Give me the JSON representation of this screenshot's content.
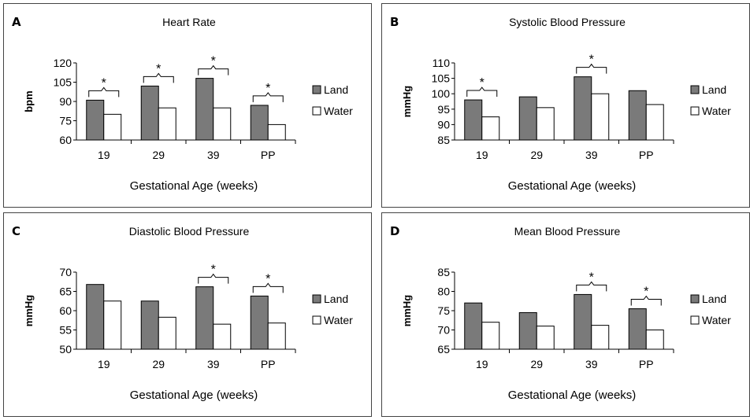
{
  "colors": {
    "land": "#7a7a7a",
    "water": "#ffffff",
    "edge": "#000000"
  },
  "chart_data": [
    {
      "type": "bar",
      "panel_label": "A",
      "title": "Heart Rate",
      "xlabel": "Gestational Age (weeks)",
      "ylabel": "bpm",
      "categories": [
        "19",
        "29",
        "39",
        "PP"
      ],
      "ylim": [
        60,
        120
      ],
      "yticks": [
        "60",
        "75",
        "90",
        "105",
        "120"
      ],
      "series": [
        {
          "name": "Land",
          "values": [
            91,
            102,
            108,
            87
          ]
        },
        {
          "name": "Water",
          "values": [
            80,
            85,
            85,
            72
          ]
        }
      ],
      "annotations": {
        "significant": [
          "19",
          "29",
          "39",
          "PP"
        ],
        "marker": "*"
      },
      "legend_position": "right"
    },
    {
      "type": "bar",
      "panel_label": "B",
      "title": "Systolic Blood Pressure",
      "xlabel": "Gestational Age (weeks)",
      "ylabel": "mmHg",
      "categories": [
        "19",
        "29",
        "39",
        "PP"
      ],
      "ylim": [
        85,
        110
      ],
      "yticks": [
        "85",
        "90",
        "95",
        "100",
        "105",
        "110"
      ],
      "series": [
        {
          "name": "Land",
          "values": [
            98,
            99,
            105.5,
            101
          ]
        },
        {
          "name": "Water",
          "values": [
            92.5,
            95.5,
            100,
            96.5
          ]
        }
      ],
      "annotations": {
        "significant": [
          "19",
          "39"
        ],
        "marker": "*"
      },
      "legend_position": "right"
    },
    {
      "type": "bar",
      "panel_label": "C",
      "title": "Diastolic Blood Pressure",
      "xlabel": "Gestational Age (weeks)",
      "ylabel": "mmHg",
      "categories": [
        "19",
        "29",
        "39",
        "PP"
      ],
      "ylim": [
        50,
        70
      ],
      "yticks": [
        "50",
        "55",
        "60",
        "65",
        "70"
      ],
      "series": [
        {
          "name": "Land",
          "values": [
            66.8,
            62.5,
            66.2,
            63.8
          ]
        },
        {
          "name": "Water",
          "values": [
            62.5,
            58.3,
            56.5,
            56.8
          ]
        }
      ],
      "annotations": {
        "significant": [
          "39",
          "PP"
        ],
        "marker": "*"
      },
      "legend_position": "right"
    },
    {
      "type": "bar",
      "panel_label": "D",
      "title": "Mean Blood Pressure",
      "xlabel": "Gestational Age (weeks)",
      "ylabel": "mmHg",
      "categories": [
        "19",
        "29",
        "39",
        "PP"
      ],
      "ylim": [
        65,
        85
      ],
      "yticks": [
        "65",
        "70",
        "75",
        "80",
        "85"
      ],
      "series": [
        {
          "name": "Land",
          "values": [
            77,
            74.5,
            79.2,
            75.5
          ]
        },
        {
          "name": "Water",
          "values": [
            72,
            71,
            71.2,
            70
          ]
        }
      ],
      "annotations": {
        "significant": [
          "39",
          "PP"
        ],
        "marker": "*"
      },
      "legend_position": "right"
    }
  ]
}
